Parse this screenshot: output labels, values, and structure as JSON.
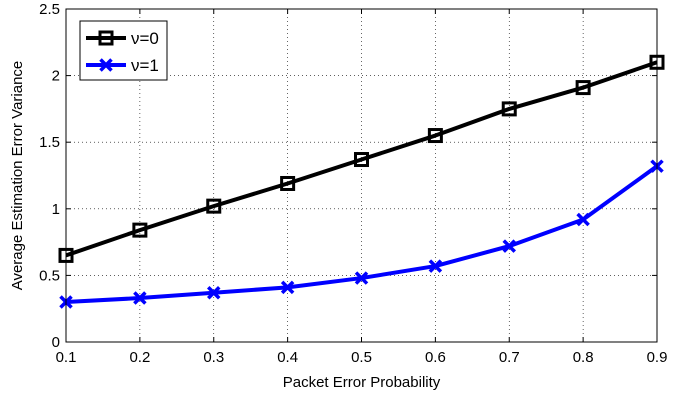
{
  "chart_data": {
    "type": "line",
    "xlabel": "Packet Error Probability",
    "ylabel": "Average Estimation Error Variance",
    "xlim": [
      0.1,
      0.9
    ],
    "ylim": [
      0,
      2.5
    ],
    "x_ticks": [
      0.1,
      0.2,
      0.3,
      0.4,
      0.5,
      0.6,
      0.7,
      0.8,
      0.9
    ],
    "y_ticks": [
      0,
      0.5,
      1,
      1.5,
      2,
      2.5
    ],
    "x_tick_labels": [
      "0.1",
      "0.2",
      "0.3",
      "0.4",
      "0.5",
      "0.6",
      "0.7",
      "0.8",
      "0.9"
    ],
    "y_tick_labels": [
      "0",
      "0.5",
      "1",
      "1.5",
      "2",
      "2.5"
    ],
    "grid": true,
    "legend_position": "top-left",
    "x": [
      0.1,
      0.2,
      0.3,
      0.4,
      0.5,
      0.6,
      0.7,
      0.8,
      0.9
    ],
    "series": [
      {
        "name": "ν=0",
        "color": "#000000",
        "marker": "square",
        "values": [
          0.65,
          0.84,
          1.02,
          1.19,
          1.37,
          1.55,
          1.75,
          1.91,
          2.1
        ]
      },
      {
        "name": "ν=1",
        "color": "#0000ff",
        "marker": "x",
        "values": [
          0.3,
          0.33,
          0.37,
          0.41,
          0.48,
          0.57,
          0.72,
          0.92,
          1.32
        ]
      }
    ]
  }
}
